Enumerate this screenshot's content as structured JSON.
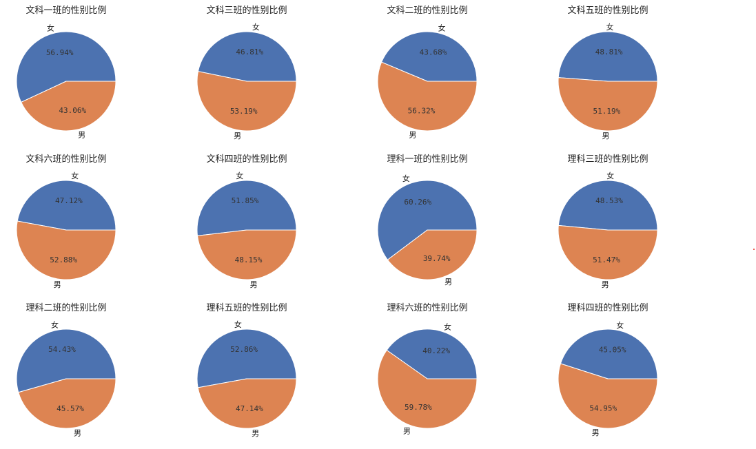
{
  "chart_data": [
    {
      "type": "pie",
      "title": "文科一班的性别比例",
      "labels": [
        "女",
        "男"
      ],
      "values": [
        56.94,
        43.06
      ],
      "pct_labels": [
        "56.94%",
        "43.06%"
      ]
    },
    {
      "type": "pie",
      "title": "文科三班的性别比例",
      "labels": [
        "女",
        "男"
      ],
      "values": [
        46.81,
        53.19
      ],
      "pct_labels": [
        "46.81%",
        "53.19%"
      ]
    },
    {
      "type": "pie",
      "title": "文科二班的性别比例",
      "labels": [
        "女",
        "男"
      ],
      "values": [
        43.68,
        56.32
      ],
      "pct_labels": [
        "43.68%",
        "56.32%"
      ]
    },
    {
      "type": "pie",
      "title": "文科五班的性别比例",
      "labels": [
        "女",
        "男"
      ],
      "values": [
        48.81,
        51.19
      ],
      "pct_labels": [
        "48.81%",
        "51.19%"
      ]
    },
    {
      "type": "pie",
      "title": "文科六班的性别比例",
      "labels": [
        "女",
        "男"
      ],
      "values": [
        47.12,
        52.88
      ],
      "pct_labels": [
        "47.12%",
        "52.88%"
      ]
    },
    {
      "type": "pie",
      "title": "文科四班的性别比例",
      "labels": [
        "女",
        "男"
      ],
      "values": [
        51.85,
        48.15
      ],
      "pct_labels": [
        "51.85%",
        "48.15%"
      ]
    },
    {
      "type": "pie",
      "title": "理科一班的性别比例",
      "labels": [
        "女",
        "男"
      ],
      "values": [
        60.26,
        39.74
      ],
      "pct_labels": [
        "60.26%",
        "39.74%"
      ]
    },
    {
      "type": "pie",
      "title": "理科三班的性别比例",
      "labels": [
        "女",
        "男"
      ],
      "values": [
        48.53,
        51.47
      ],
      "pct_labels": [
        "48.53%",
        "51.47%"
      ]
    },
    {
      "type": "pie",
      "title": "理科二班的性别比例",
      "labels": [
        "女",
        "男"
      ],
      "values": [
        54.43,
        45.57
      ],
      "pct_labels": [
        "54.43%",
        "45.57%"
      ]
    },
    {
      "type": "pie",
      "title": "理科五班的性别比例",
      "labels": [
        "女",
        "男"
      ],
      "values": [
        52.86,
        47.14
      ],
      "pct_labels": [
        "52.86%",
        "47.14%"
      ]
    },
    {
      "type": "pie",
      "title": "理科六班的性别比例",
      "labels": [
        "女",
        "男"
      ],
      "values": [
        40.22,
        59.78
      ],
      "pct_labels": [
        "40.22%",
        "59.78%"
      ]
    },
    {
      "type": "pie",
      "title": "理科四班的性别比例",
      "labels": [
        "女",
        "男"
      ],
      "values": [
        45.05,
        54.95
      ],
      "pct_labels": [
        "45.05%",
        "54.95%"
      ]
    }
  ],
  "colors": {
    "female": "#4c72b0",
    "male": "#dd8452",
    "slice_edge": "#ffffff",
    "background": "#ffffff"
  }
}
